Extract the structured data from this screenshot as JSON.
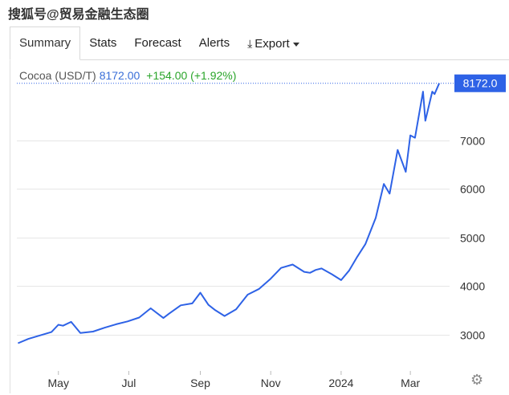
{
  "watermark": "搜狐号@贸易金融生态圈",
  "tabs": [
    {
      "label": "Summary",
      "active": true
    },
    {
      "label": "Stats"
    },
    {
      "label": "Forecast"
    },
    {
      "label": "Alerts"
    },
    {
      "label": "Export"
    }
  ],
  "quote": {
    "symbol": "Cocoa (USD/T)",
    "price": "8172.00",
    "change": "+154.00 (+1.92%)"
  },
  "colors": {
    "line": "#2e62e6",
    "price": "#3a6fd8",
    "change": "#2aa52a",
    "badge": "#2e62e6"
  },
  "chart_data": {
    "type": "line",
    "title": "",
    "xlabel": "",
    "ylabel": "",
    "grid": true,
    "ylim": [
      2250,
      8300
    ],
    "y_ticks": [
      3000,
      4000,
      5000,
      6000,
      7000
    ],
    "x_ticks": [
      "May",
      "Jul",
      "Sep",
      "Nov",
      "2024",
      "Mar"
    ],
    "last_value_label": "8172.0",
    "series": [
      {
        "x": [
          "2023-03-27",
          "2023-04-05",
          "2023-04-15",
          "2023-04-25",
          "2023-05-01",
          "2023-05-05",
          "2023-05-12",
          "2023-05-20",
          "2023-05-31",
          "2023-06-10",
          "2023-06-20",
          "2023-06-30",
          "2023-07-10",
          "2023-07-20",
          "2023-07-31",
          "2023-08-05",
          "2023-08-15",
          "2023-08-25",
          "2023-09-01",
          "2023-09-08",
          "2023-09-14",
          "2023-09-22",
          "2023-10-02",
          "2023-10-12",
          "2023-10-22",
          "2023-11-01",
          "2023-11-10",
          "2023-11-20",
          "2023-11-30",
          "2023-12-05",
          "2023-12-10",
          "2023-12-15",
          "2023-12-24",
          "2024-01-01",
          "2024-01-08",
          "2024-01-15",
          "2024-01-22",
          "2024-01-31",
          "2024-02-07",
          "2024-02-12",
          "2024-02-19",
          "2024-02-26",
          "2024-03-01",
          "2024-03-05",
          "2024-03-12",
          "2024-03-14",
          "2024-03-20",
          "2024-03-22",
          "2024-03-26"
        ],
        "y": [
          2820,
          2910,
          2980,
          3050,
          3200,
          3180,
          3260,
          3030,
          3060,
          3140,
          3210,
          3270,
          3350,
          3540,
          3340,
          3430,
          3600,
          3640,
          3860,
          3610,
          3500,
          3380,
          3520,
          3820,
          3940,
          4150,
          4370,
          4440,
          4290,
          4270,
          4330,
          4360,
          4240,
          4120,
          4320,
          4600,
          4860,
          5400,
          6100,
          5900,
          6800,
          6350,
          7100,
          7050,
          8000,
          7400,
          8000,
          7950,
          8172
        ]
      }
    ]
  }
}
